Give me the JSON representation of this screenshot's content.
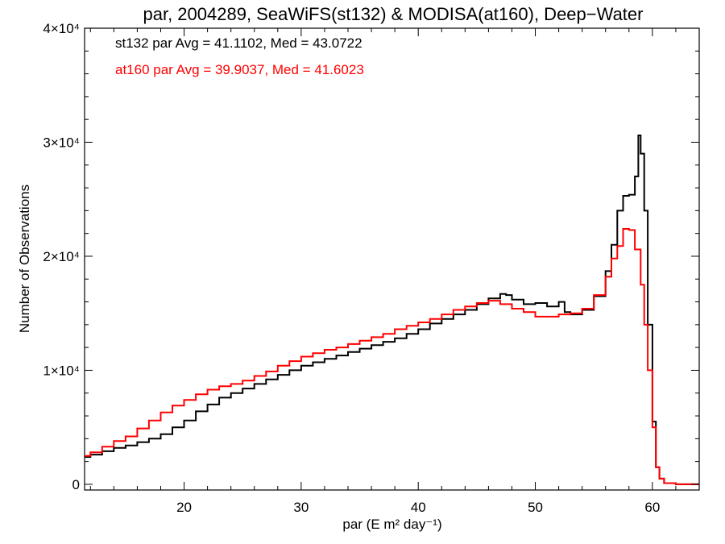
{
  "chart_data": {
    "type": "line",
    "title": "par, 2004289, SeaWiFS(st132) & MODISA(at160), Deep−Water",
    "xlabel": "par (E m² day⁻¹)",
    "ylabel": "Number of Observations",
    "xlim": [
      11.5,
      64
    ],
    "ylim": [
      -500,
      40000
    ],
    "xticks": [
      20,
      30,
      40,
      50,
      60
    ],
    "xtick_labels": [
      "20",
      "30",
      "40",
      "50",
      "60"
    ],
    "yticks": [
      0,
      10000,
      20000,
      30000,
      40000
    ],
    "ytick_labels": [
      "0",
      "1×10⁴",
      "2×10⁴",
      "3×10⁴",
      "4×10⁴"
    ],
    "annotations": [
      {
        "text": "st132 par Avg = 41.1102, Med = 43.0722",
        "color": "#000000"
      },
      {
        "text": "at160 par Avg = 39.9037, Med = 41.6023",
        "color": "#ff0000"
      }
    ],
    "series": [
      {
        "name": "st132",
        "color": "#000000",
        "step": "histogram",
        "x": [
          11.5,
          12,
          13,
          14,
          15,
          16,
          17,
          18,
          19,
          20,
          21,
          22,
          23,
          24,
          25,
          26,
          27,
          28,
          29,
          30,
          31,
          32,
          33,
          34,
          35,
          36,
          37,
          38,
          39,
          40,
          41,
          42,
          43,
          44,
          45,
          46,
          47,
          47.5,
          48,
          49,
          50,
          51,
          52,
          52.5,
          53,
          54,
          55,
          56,
          56.5,
          57,
          57.5,
          58,
          58.5,
          58.8,
          59,
          59.3,
          59.6,
          60,
          60.3,
          60.6,
          61,
          62,
          63,
          64
        ],
        "y": [
          2400,
          2600,
          2900,
          3200,
          3400,
          3700,
          4000,
          4400,
          5000,
          5600,
          6400,
          7000,
          7600,
          8000,
          8400,
          8800,
          9200,
          9600,
          10000,
          10400,
          10700,
          11000,
          11300,
          11600,
          11900,
          12200,
          12500,
          12800,
          13200,
          13600,
          14100,
          14500,
          14900,
          15300,
          15800,
          16300,
          16700,
          16600,
          16200,
          15800,
          15900,
          15600,
          16000,
          15100,
          14900,
          15300,
          16500,
          18700,
          21000,
          24000,
          25300,
          25400,
          27000,
          30600,
          29000,
          24000,
          14000,
          5500,
          1500,
          500,
          100,
          0,
          0,
          0
        ]
      },
      {
        "name": "at160",
        "color": "#ff0000",
        "step": "histogram",
        "x": [
          11.5,
          12,
          13,
          14,
          15,
          16,
          17,
          18,
          19,
          20,
          21,
          22,
          23,
          24,
          25,
          26,
          27,
          28,
          29,
          30,
          31,
          32,
          33,
          34,
          35,
          36,
          37,
          38,
          39,
          40,
          41,
          42,
          43,
          44,
          45,
          46,
          47,
          48,
          49,
          50,
          51,
          52,
          53,
          54,
          55,
          56,
          56.5,
          57,
          57.5,
          58,
          58.5,
          59,
          59.3,
          59.6,
          60,
          60.3,
          60.6,
          61,
          62,
          63,
          64
        ],
        "y": [
          2500,
          2800,
          3300,
          3800,
          4200,
          4900,
          5600,
          6300,
          6900,
          7400,
          7900,
          8300,
          8600,
          8800,
          9100,
          9500,
          9900,
          10400,
          10800,
          11200,
          11500,
          11800,
          12000,
          12300,
          12600,
          12900,
          13200,
          13600,
          13900,
          14200,
          14500,
          14900,
          15300,
          15600,
          15900,
          16100,
          15800,
          15400,
          15100,
          14700,
          14700,
          14900,
          15000,
          15400,
          16600,
          18200,
          19800,
          20900,
          22400,
          22300,
          20600,
          17500,
          14000,
          10000,
          5000,
          1500,
          500,
          100,
          0,
          0,
          0
        ]
      }
    ]
  }
}
